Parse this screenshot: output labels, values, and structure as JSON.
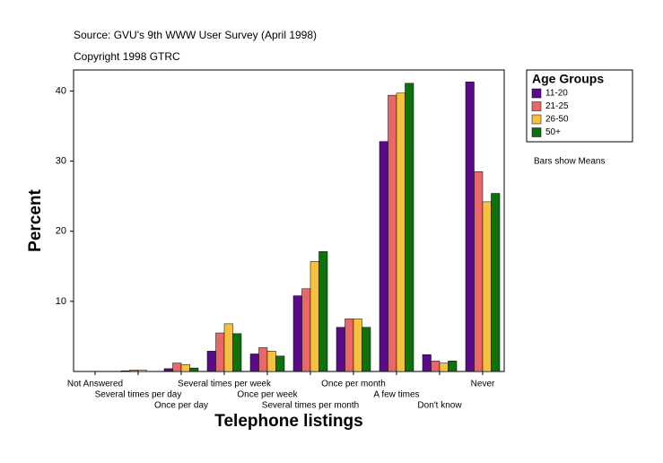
{
  "chart_data": {
    "type": "bar",
    "title": "Source: GVU's 9th WWW User Survey (April 1998)",
    "subtitle": "Copyright 1998 GTRC",
    "x_label": "Telephone listings",
    "y_label": "Percent",
    "annotation": "Bars show Means",
    "legend_title": "Age Groups",
    "legend_position": "right",
    "categories": [
      "Not Answered",
      "Several  times per day",
      "Once per day",
      "Several times per week",
      "Once per week",
      "Several times per month",
      "Once per month",
      "A few times",
      "Don't know",
      "Never"
    ],
    "series": [
      {
        "name": "11-20",
        "color": "#5a0a8c",
        "values": [
          0,
          0.1,
          0.4,
          2.9,
          2.5,
          10.8,
          6.3,
          32.8,
          2.4,
          41.3
        ]
      },
      {
        "name": "21-25",
        "color": "#e8686a",
        "values": [
          0,
          0.2,
          1.2,
          5.5,
          3.4,
          11.8,
          7.5,
          39.4,
          1.5,
          28.5
        ]
      },
      {
        "name": "26-50",
        "color": "#f8c040",
        "values": [
          0,
          0.2,
          1.0,
          6.8,
          2.9,
          15.7,
          7.5,
          39.7,
          1.2,
          24.2
        ]
      },
      {
        "name": "50+",
        "color": "#107010",
        "values": [
          0,
          0,
          0.5,
          5.4,
          2.2,
          17.1,
          6.3,
          41.1,
          1.5,
          25.4
        ]
      }
    ],
    "ylim": [
      0,
      43
    ],
    "yticks": [
      10,
      20,
      30,
      40
    ]
  }
}
